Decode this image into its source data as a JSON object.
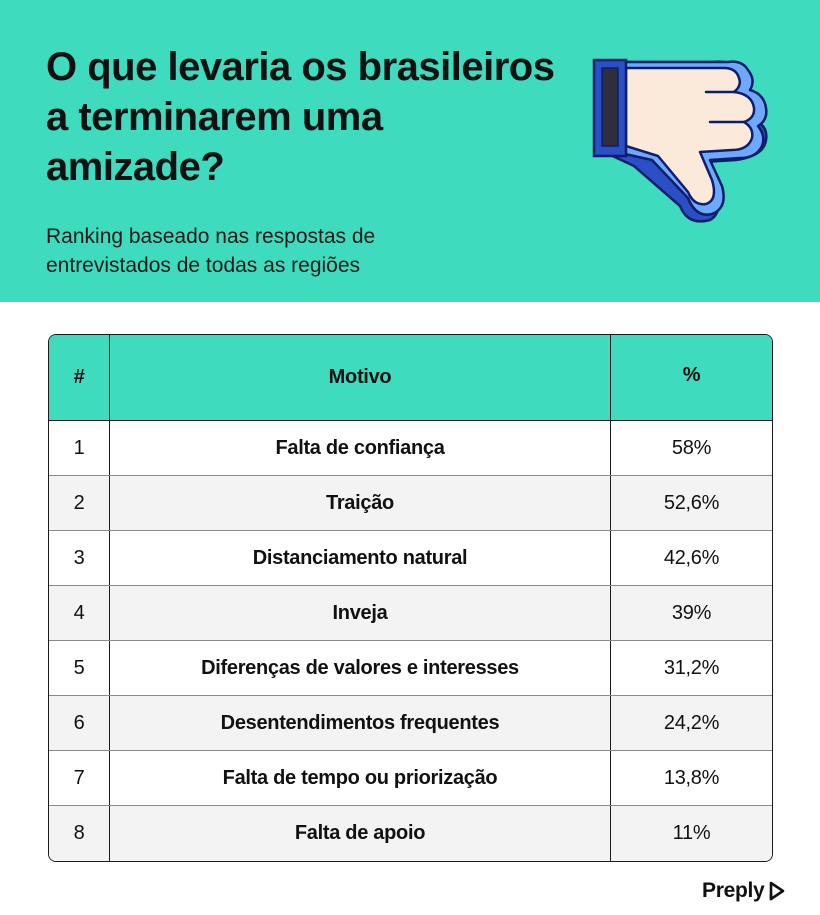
{
  "header": {
    "title": "O que levaria os brasileiros a terminarem uma amizade?",
    "subtitle": "Ranking baseado nas respostas de entrevistados de todas as regiões",
    "background": "#3edbbf",
    "illustration": "thumbs-down-icon"
  },
  "chart_data": {
    "type": "table",
    "columns": [
      "#",
      "Motivo",
      "%"
    ],
    "rows": [
      {
        "rank": "1",
        "motivo": "Falta de confiança",
        "pct": "58%"
      },
      {
        "rank": "2",
        "motivo": "Traição",
        "pct": "52,6%"
      },
      {
        "rank": "3",
        "motivo": "Distanciamento natural",
        "pct": "42,6%"
      },
      {
        "rank": "4",
        "motivo": "Inveja",
        "pct": "39%"
      },
      {
        "rank": "5",
        "motivo": "Diferenças de valores e interesses",
        "pct": "31,2%"
      },
      {
        "rank": "6",
        "motivo": "Desentendimentos frequentes",
        "pct": "24,2%"
      },
      {
        "rank": "7",
        "motivo": "Falta de tempo ou priorização",
        "pct": "13,8%"
      },
      {
        "rank": "8",
        "motivo": "Falta de apoio",
        "pct": "11%"
      }
    ]
  },
  "footer": {
    "logo": "Preply",
    "logo_icon": "preply-logo-icon"
  }
}
